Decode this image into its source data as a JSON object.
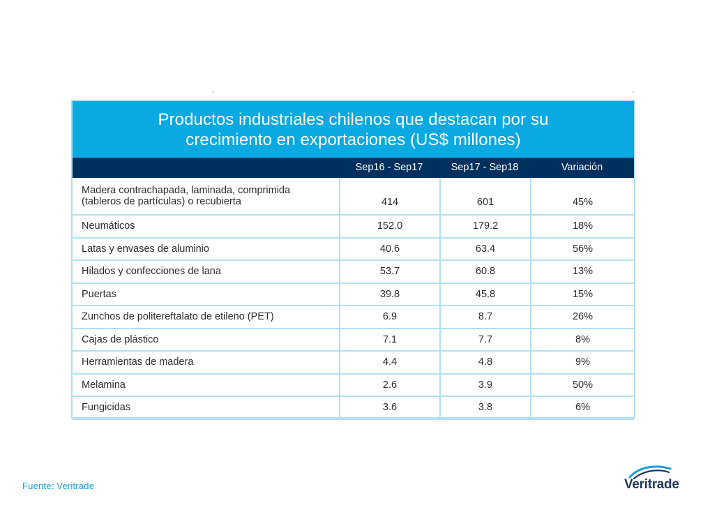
{
  "chart_data": {
    "type": "table",
    "title": "Productos industriales chilenos que destacan por su crecimiento en exportaciones (US$ millones)",
    "columns": [
      "",
      "Sep16 - Sep17",
      "Sep17 - Sep18",
      "Variación"
    ],
    "rows": [
      {
        "product": "Madera contrachapada, laminada, comprimida (tableros de partículas) o recubierta",
        "sep16_sep17": "414",
        "sep17_sep18": "601",
        "variation": "45%"
      },
      {
        "product": "Neumáticos",
        "sep16_sep17": "152.0",
        "sep17_sep18": "179.2",
        "variation": "18%"
      },
      {
        "product": "Latas y envases de aluminio",
        "sep16_sep17": "40.6",
        "sep17_sep18": "63.4",
        "variation": "56%"
      },
      {
        "product": "Hilados y confecciones de lana",
        "sep16_sep17": "53.7",
        "sep17_sep18": "60.8",
        "variation": "13%"
      },
      {
        "product": "Puertas",
        "sep16_sep17": "39.8",
        "sep17_sep18": "45.8",
        "variation": "15%"
      },
      {
        "product": "Zunchos de politereftalato de etileno (PET)",
        "sep16_sep17": "6.9",
        "sep17_sep18": "8.7",
        "variation": "26%"
      },
      {
        "product": "Cajas de plástico",
        "sep16_sep17": "7.1",
        "sep17_sep18": "7.7",
        "variation": "8%"
      },
      {
        "product": "Herramientas de madera",
        "sep16_sep17": "4.4",
        "sep17_sep18": "4.8",
        "variation": "9%"
      },
      {
        "product": "Melamina",
        "sep16_sep17": "2.6",
        "sep17_sep18": "3.9",
        "variation": "50%"
      },
      {
        "product": "Fungicidas",
        "sep16_sep17": "3.6",
        "sep17_sep18": "3.8",
        "variation": "6%"
      }
    ]
  },
  "source": "Fuente: Veritrade",
  "logo": {
    "text": "Veritrade",
    "icon": "veritrade-swoosh-icon"
  },
  "colors": {
    "title_band": "#0aa9e2",
    "header_band": "#00305e",
    "grid_lines": "#b3dff2",
    "source_text": "#1a9fd9",
    "logo_text": "#1f3a5c"
  }
}
